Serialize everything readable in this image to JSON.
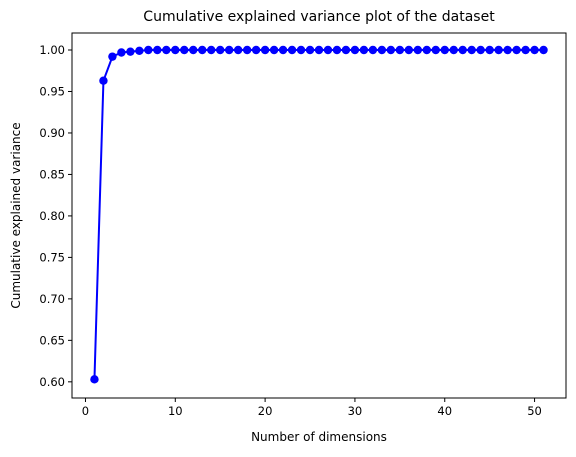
{
  "chart_data": {
    "type": "line",
    "title": "Cumulative explained variance plot of the dataset",
    "xlabel": "Number of dimensions",
    "ylabel": "Cumulative explained variance",
    "xlim": [
      -1.5,
      53.5
    ],
    "ylim": [
      0.5805,
      1.0205
    ],
    "xticks": [
      0,
      10,
      20,
      30,
      40,
      50
    ],
    "xtick_labels": [
      "0",
      "10",
      "20",
      "30",
      "40",
      "50"
    ],
    "yticks": [
      0.6,
      0.65,
      0.7,
      0.75,
      0.8,
      0.85,
      0.9,
      0.95,
      1.0
    ],
    "ytick_labels": [
      "0.60",
      "0.65",
      "0.70",
      "0.75",
      "0.80",
      "0.85",
      "0.90",
      "0.95",
      "1.00"
    ],
    "grid": false,
    "series": [
      {
        "color": "#0000ff",
        "marker": "circle",
        "x": [
          1,
          2,
          3,
          4,
          5,
          6,
          7,
          8,
          9,
          10,
          11,
          12,
          13,
          14,
          15,
          16,
          17,
          18,
          19,
          20,
          21,
          22,
          23,
          24,
          25,
          26,
          27,
          28,
          29,
          30,
          31,
          32,
          33,
          34,
          35,
          36,
          37,
          38,
          39,
          40,
          41,
          42,
          43,
          44,
          45,
          46,
          47,
          48,
          49,
          50,
          51
        ],
        "y": [
          0.603,
          0.963,
          0.992,
          0.997,
          0.998,
          0.999,
          1.0,
          1.0,
          1.0,
          1.0,
          1.0,
          1.0,
          1.0,
          1.0,
          1.0,
          1.0,
          1.0,
          1.0,
          1.0,
          1.0,
          1.0,
          1.0,
          1.0,
          1.0,
          1.0,
          1.0,
          1.0,
          1.0,
          1.0,
          1.0,
          1.0,
          1.0,
          1.0,
          1.0,
          1.0,
          1.0,
          1.0,
          1.0,
          1.0,
          1.0,
          1.0,
          1.0,
          1.0,
          1.0,
          1.0,
          1.0,
          1.0,
          1.0,
          1.0,
          1.0,
          1.0
        ]
      }
    ]
  }
}
